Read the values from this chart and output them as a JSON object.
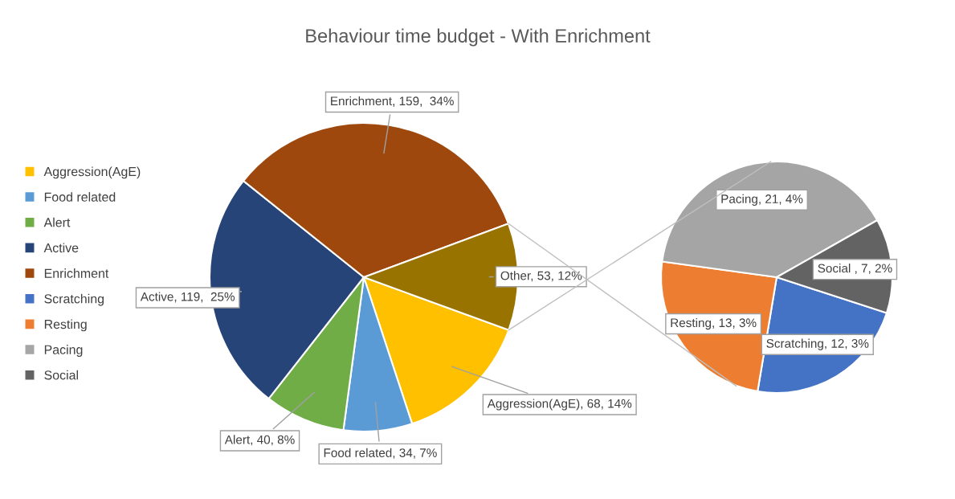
{
  "chart_data": [
    {
      "type": "pie",
      "title": "Behaviour time budget - With Enrichment",
      "legend": "left",
      "categories": [
        "Aggression(AgE)",
        "Food related",
        "Alert",
        "Active",
        "Enrichment",
        "Other"
      ],
      "values": [
        68,
        34,
        40,
        119,
        159,
        53
      ],
      "colors": [
        "#ffc000",
        "#5b9bd5",
        "#70ad47",
        "#264478",
        "#9e480e",
        "#997300"
      ],
      "value_labels": [
        ", 68, 14%",
        ", 34, 7%",
        ", 40, 8%",
        ", 119,  25%",
        ", 159,  34%",
        ", 53, 12%"
      ]
    },
    {
      "type": "pie",
      "legend": "left",
      "categories": [
        "Scratching",
        "Resting",
        "Pacing",
        "Social"
      ],
      "values": [
        12,
        13,
        21,
        7
      ],
      "colors": [
        "#4472c4",
        "#ed7d31",
        "#a5a5a5",
        "#636363"
      ],
      "value_labels": [
        ", 12, 3%",
        ", 13, 3%",
        ", 21, 4%",
        " , 7, 2%"
      ]
    }
  ]
}
